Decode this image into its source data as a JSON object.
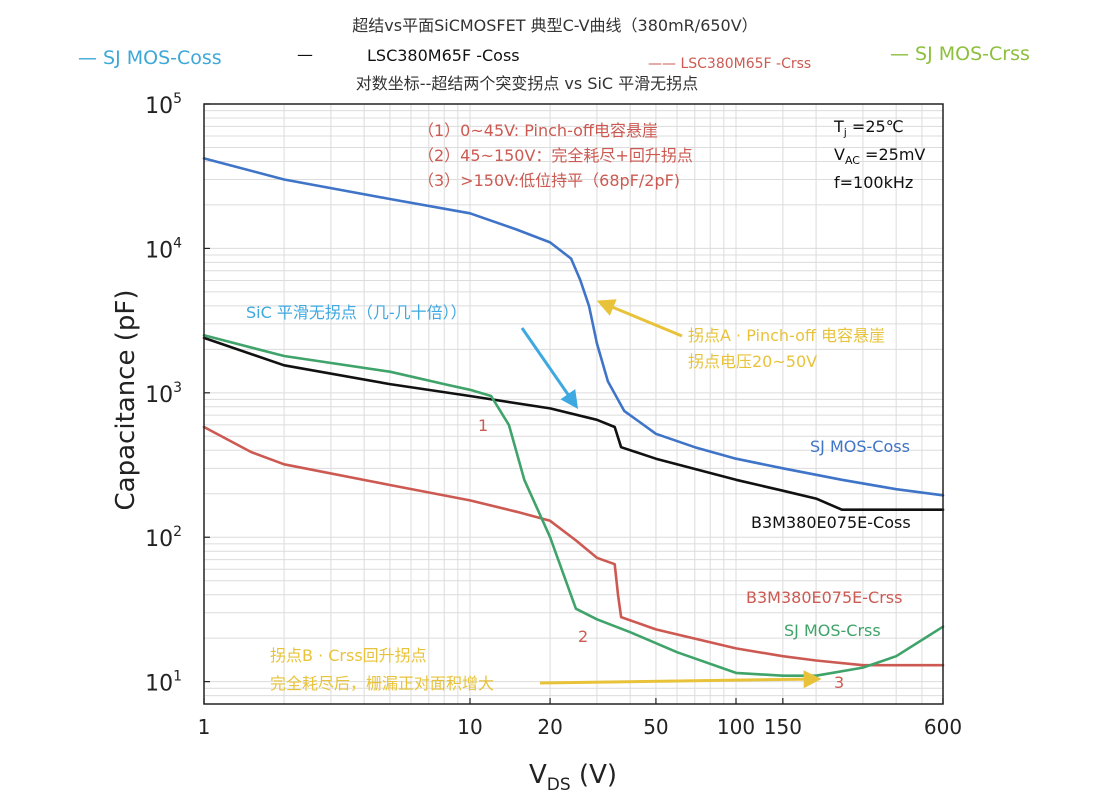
{
  "colors": {
    "sj_coss": "#3f74c8",
    "lsc_coss": "#111111",
    "lsc_crss": "#cc5a52",
    "sj_crss": "#3fa36a",
    "legend_blue": "#3ea8d8",
    "legend_green": "#8dbf3c",
    "annot_red": "#cc5a52",
    "annot_yellow": "#e8c33a",
    "annot_cyan": "#3ea8e0",
    "grid": "#dcdcdc"
  },
  "chart_data": {
    "type": "line",
    "title": "超结vs平面SiCMOSFET 典型C-V曲线（380mR/650V）",
    "subtitle": "对数坐标--超结两个突变拐点 vs SiC 平滑无拐点",
    "xlabel_main": "V",
    "xlabel_sub": "DS",
    "xlabel_unit": " (V)",
    "ylabel": "Capacitance (pF)",
    "x_scale": "log",
    "y_scale": "log",
    "xlim": [
      1,
      600
    ],
    "ylim": [
      7,
      100000
    ],
    "grid": true,
    "x_ticks": [
      {
        "value": 1,
        "label": "1"
      },
      {
        "value": 10,
        "label": "10"
      },
      {
        "value": 20,
        "label": "20"
      },
      {
        "value": 50,
        "label": "50"
      },
      {
        "value": 100,
        "label": "100"
      },
      {
        "value": 150,
        "label": "150"
      },
      {
        "value": 600,
        "label": "600"
      }
    ],
    "y_ticks": [
      {
        "value": 10,
        "base": "10",
        "exp": "1"
      },
      {
        "value": 100,
        "base": "10",
        "exp": "2"
      },
      {
        "value": 1000,
        "base": "10",
        "exp": "3"
      },
      {
        "value": 10000,
        "base": "10",
        "exp": "4"
      },
      {
        "value": 100000,
        "base": "10",
        "exp": "5"
      }
    ],
    "legend": [
      {
        "label": "— SJ MOS-Coss",
        "color": "#3ea8d8",
        "position": "top-left"
      },
      {
        "label": "—",
        "color": "#111111",
        "position": "top-center-left"
      },
      {
        "label": "LSC380M65F -Coss",
        "color": "#111111",
        "position": "top-center"
      },
      {
        "label": "—— LSC380M65F -Crss",
        "color": "#cc5a52",
        "position": "top-center-right"
      },
      {
        "label": "— SJ MOS-Crss",
        "color": "#8dbf3c",
        "position": "top-right"
      }
    ],
    "series": [
      {
        "name": "SJ MOS-Coss",
        "color": "#3f74c8",
        "points": [
          [
            1,
            42000
          ],
          [
            2,
            30000
          ],
          [
            5,
            22000
          ],
          [
            10,
            17500
          ],
          [
            15,
            13500
          ],
          [
            20,
            11000
          ],
          [
            24,
            8500
          ],
          [
            26,
            6000
          ],
          [
            28,
            4000
          ],
          [
            30,
            2200
          ],
          [
            33,
            1200
          ],
          [
            38,
            750
          ],
          [
            50,
            520
          ],
          [
            70,
            420
          ],
          [
            100,
            350
          ],
          [
            150,
            300
          ],
          [
            250,
            250
          ],
          [
            400,
            215
          ],
          [
            600,
            195
          ]
        ]
      },
      {
        "name": "B3M380E075E-Coss",
        "color": "#111111",
        "points": [
          [
            1,
            2400
          ],
          [
            2,
            1550
          ],
          [
            5,
            1150
          ],
          [
            10,
            950
          ],
          [
            20,
            780
          ],
          [
            30,
            650
          ],
          [
            35,
            580
          ],
          [
            37,
            420
          ],
          [
            50,
            350
          ],
          [
            100,
            250
          ],
          [
            150,
            210
          ],
          [
            200,
            185
          ],
          [
            250,
            155
          ],
          [
            400,
            155
          ],
          [
            600,
            155
          ]
        ]
      },
      {
        "name": "B3M380E075E-Crss",
        "color": "#cc5a52",
        "points": [
          [
            1,
            580
          ],
          [
            1.5,
            390
          ],
          [
            2,
            320
          ],
          [
            5,
            230
          ],
          [
            10,
            180
          ],
          [
            15,
            150
          ],
          [
            20,
            130
          ],
          [
            25,
            95
          ],
          [
            30,
            72
          ],
          [
            35,
            65
          ],
          [
            36,
            40
          ],
          [
            37,
            28
          ],
          [
            50,
            23
          ],
          [
            100,
            17
          ],
          [
            150,
            15
          ],
          [
            200,
            14
          ],
          [
            300,
            13
          ],
          [
            600,
            13
          ]
        ]
      },
      {
        "name": "SJ MOS-Crss",
        "color": "#3fa36a",
        "points": [
          [
            1,
            2500
          ],
          [
            2,
            1800
          ],
          [
            5,
            1400
          ],
          [
            8,
            1150
          ],
          [
            10,
            1050
          ],
          [
            12,
            950
          ],
          [
            14,
            600
          ],
          [
            16,
            250
          ],
          [
            20,
            100
          ],
          [
            25,
            32
          ],
          [
            30,
            27
          ],
          [
            40,
            22
          ],
          [
            60,
            16
          ],
          [
            100,
            11.5
          ],
          [
            150,
            11
          ],
          [
            200,
            11
          ],
          [
            300,
            12.5
          ],
          [
            400,
            15
          ],
          [
            600,
            24
          ]
        ]
      }
    ],
    "annotations": [
      {
        "text": "（1）0~45V: Pinch-off电容悬崖",
        "color": "#cc5a52"
      },
      {
        "text": "（2）45~150V：完全耗尽+回升拐点",
        "color": "#cc5a52"
      },
      {
        "text": "（3）>150V:低位持平（68pF/2pF)",
        "color": "#cc5a52"
      },
      {
        "text": "SiC 平滑无拐点（几-几十倍））",
        "color": "#3ea8e0"
      },
      {
        "text": "拐点A · Pinch-off 电容悬崖",
        "color": "#e8c33a"
      },
      {
        "text": "拐点电压20~50V",
        "color": "#e8c33a"
      },
      {
        "text": "拐点B · Crss回升拐点",
        "color": "#e8c33a"
      },
      {
        "text": "完全耗尽后，栅漏正对面积增大",
        "color": "#e8c33a"
      },
      {
        "text": "1",
        "color": "#cc5a52"
      },
      {
        "text": "2",
        "color": "#cc5a52"
      },
      {
        "text": "3",
        "color": "#cc5a52"
      }
    ],
    "curve_labels": [
      {
        "text": "SJ MOS-Coss",
        "color": "#3f74c8"
      },
      {
        "text": "B3M380E075E-Coss",
        "color": "#111111"
      },
      {
        "text": "B3M380E075E-Crss",
        "color": "#cc5a52"
      },
      {
        "text": "SJ MOS-Crss",
        "color": "#3fa36a"
      }
    ],
    "conditions": {
      "tj_main": "T",
      "tj_sub": "j",
      "tj_value": " =25℃",
      "vac_main": "V",
      "vac_sub": "AC",
      "vac_value": " =25mV",
      "freq": "f=100kHz"
    }
  }
}
